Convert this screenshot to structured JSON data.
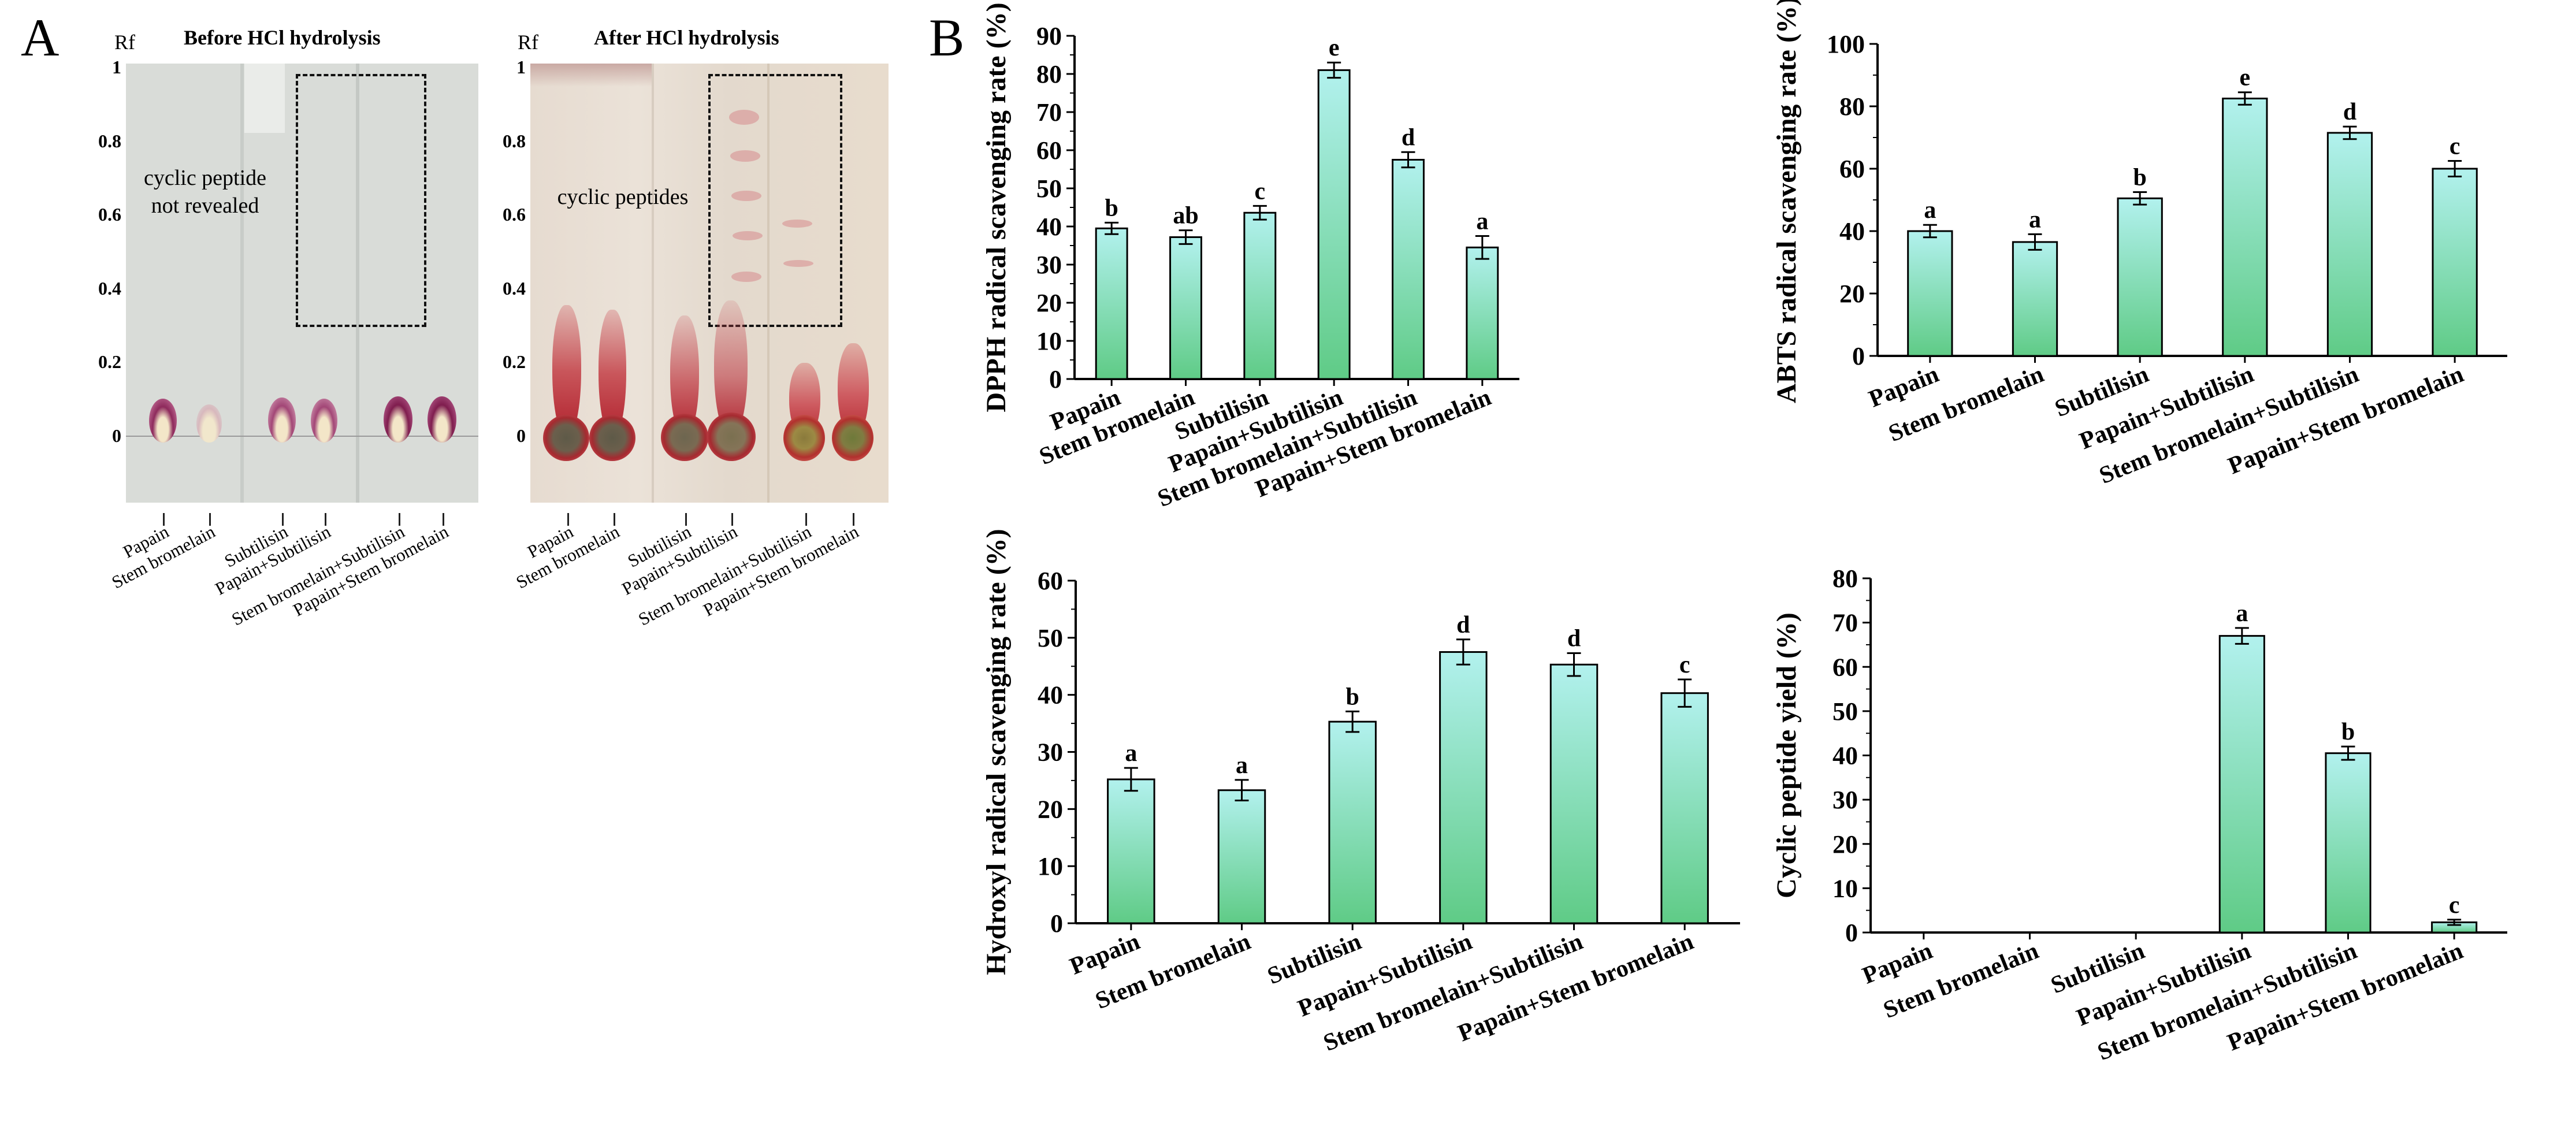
{
  "panelA": {
    "letter": "A",
    "rf_label": "Rf",
    "rf_ticks": [
      "1",
      "0.8",
      "0.6",
      "0.4",
      "0.2",
      "0"
    ],
    "before": {
      "title": "Before HCl hydrolysis",
      "note": "cyclic peptide not revealed",
      "note_line1": "cyclic peptide",
      "note_line2": "not revealed"
    },
    "after": {
      "title": "After HCl hydrolysis",
      "note": "cyclic peptides"
    },
    "lanes": [
      "Papain",
      "Stem bromelain",
      "Subtilisin",
      "Papain+Subtilisin",
      "Stem bromelain+Subtilisin",
      "Papain+Stem bromelain"
    ],
    "colors": {
      "before_plate": "#d9dcd8",
      "after_plate": "#e4d8cc",
      "spot_before": "#8e2a5c",
      "spot_after": "#b0202c"
    }
  },
  "panelB": {
    "letter": "B"
  },
  "chart_data": [
    {
      "type": "bar",
      "title": "",
      "xlabel": "",
      "ylabel": "DPPH radical scavenging rate (%)",
      "categories": [
        "Papain",
        "Stem bromelain",
        "Subtilisin",
        "Papain+Subtilisin",
        "Stem bromelain+Subtilisin",
        "Papain+Stem bromelain"
      ],
      "values": [
        39.5,
        37.2,
        43.6,
        81.0,
        57.5,
        34.5
      ],
      "errors": [
        1.5,
        1.8,
        1.8,
        2.0,
        2.0,
        3.0
      ],
      "letters": [
        "b",
        "ab",
        "c",
        "e",
        "d",
        "a"
      ],
      "ylim": [
        0,
        90
      ],
      "yticks": [
        "0",
        "10",
        "20",
        "30",
        "40",
        "50",
        "60",
        "70",
        "80",
        "90"
      ]
    },
    {
      "type": "bar",
      "title": "",
      "xlabel": "",
      "ylabel": "ABTS radical scavenging rate (%)",
      "categories": [
        "Papain",
        "Stem bromelain",
        "Subtilisin",
        "Papain+Subtilisin",
        "Stem bromelain+Subtilisin",
        "Papain+Stem bromelain"
      ],
      "values": [
        40.0,
        36.5,
        50.5,
        82.5,
        71.5,
        60.0
      ],
      "errors": [
        2.0,
        2.5,
        2.0,
        2.0,
        2.0,
        2.5
      ],
      "letters": [
        "a",
        "a",
        "b",
        "e",
        "d",
        "c"
      ],
      "ylim": [
        0,
        100
      ],
      "yticks": [
        "0",
        "20",
        "40",
        "60",
        "80",
        "100"
      ]
    },
    {
      "type": "bar",
      "title": "",
      "xlabel": "",
      "ylabel": "Hydroxyl radical scavenging rate (%)",
      "categories": [
        "Papain",
        "Stem bromelain",
        "Subtilisin",
        "Papain+Subtilisin",
        "Stem bromelain+Subtilisin",
        "Papain+Stem bromelain"
      ],
      "values": [
        25.2,
        23.3,
        35.3,
        47.5,
        45.3,
        40.3
      ],
      "errors": [
        2.0,
        1.8,
        1.8,
        2.2,
        2.0,
        2.4
      ],
      "letters": [
        "a",
        "a",
        "b",
        "d",
        "d",
        "c"
      ],
      "ylim": [
        0,
        60
      ],
      "yticks": [
        "0",
        "10",
        "20",
        "30",
        "40",
        "50",
        "60"
      ]
    },
    {
      "type": "bar",
      "title": "",
      "xlabel": "",
      "ylabel": "Cyclic peptide yield (%)",
      "categories": [
        "Papain",
        "Stem bromelain",
        "Subtilisin",
        "Papain+Subtilisin",
        "Stem bromelain+Subtilisin",
        "Papain+Stem bromelain"
      ],
      "values": [
        0,
        0,
        0,
        67.0,
        40.5,
        2.3
      ],
      "errors": [
        0,
        0,
        0,
        1.8,
        1.5,
        0.6
      ],
      "letters": [
        "",
        "",
        "",
        "a",
        "b",
        "c"
      ],
      "ylim": [
        0,
        80
      ],
      "yticks": [
        "0",
        "10",
        "20",
        "30",
        "40",
        "50",
        "60",
        "70",
        "80"
      ]
    }
  ]
}
